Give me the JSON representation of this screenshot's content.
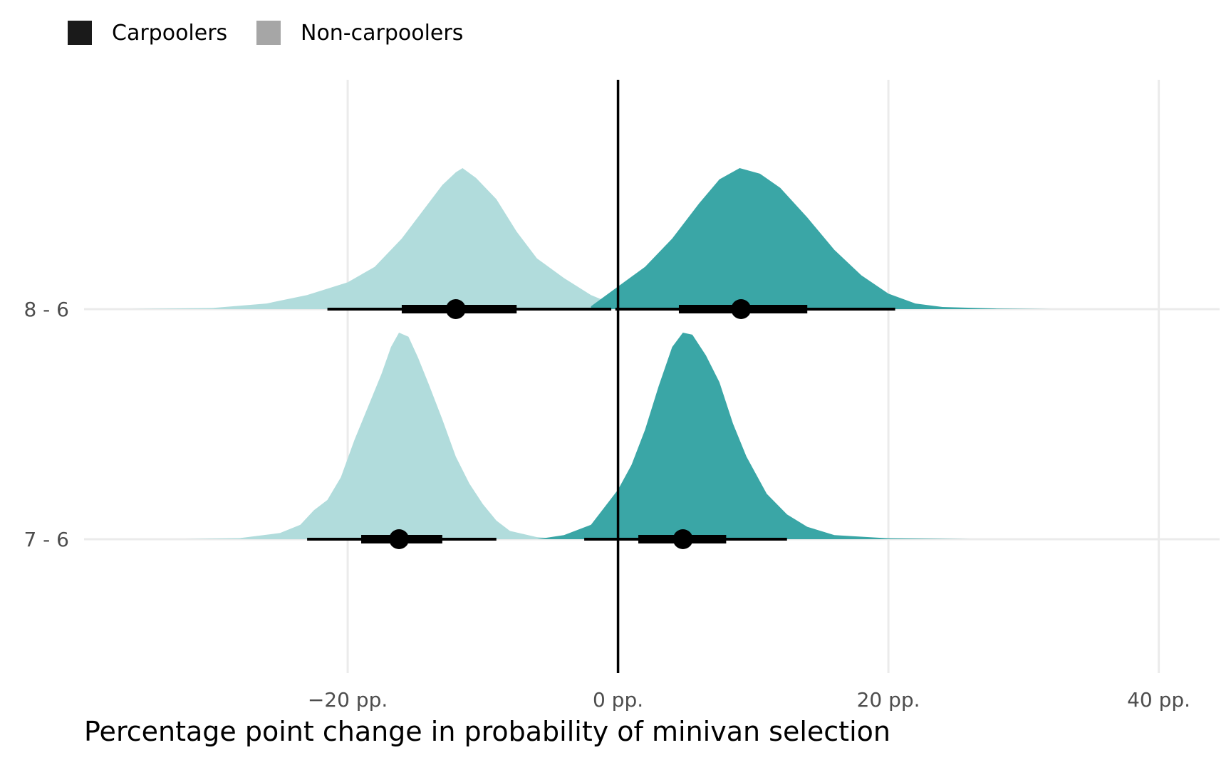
{
  "chart_data": {
    "type": "area",
    "title": "",
    "xlabel": "Percentage point change in probability of minivan selection",
    "ylabel": "",
    "xlim": [
      -39.5,
      44.5
    ],
    "x_ticks": [
      {
        "value": -20,
        "label": "−20 pp."
      },
      {
        "value": 0,
        "label": "0 pp."
      },
      {
        "value": 20,
        "label": "20 pp."
      },
      {
        "value": 40,
        "label": "40 pp."
      }
    ],
    "categories": [
      "8 - 6",
      "7 - 6"
    ],
    "reference_line_x": 0,
    "grid": true,
    "legend": {
      "position": "top-left",
      "entries": [
        {
          "name": "Carpoolers",
          "key_color": "#1a1a1a"
        },
        {
          "name": "Non-carpoolers",
          "key_color": "#a6a6a6"
        }
      ]
    },
    "colors": {
      "Carpoolers": "#3aa6a6",
      "Non-carpoolers": "#b1dcdc",
      "interval": "#000000"
    },
    "series": [
      {
        "name": "Carpoolers",
        "category": "8 - 6",
        "point": 9.1,
        "interval_66": [
          4.5,
          14.0
        ],
        "interval_95": [
          -0.2,
          20.5
        ],
        "density": [
          [
            -2,
            0.02
          ],
          [
            0,
            0.16
          ],
          [
            2,
            0.3
          ],
          [
            4,
            0.5
          ],
          [
            6,
            0.75
          ],
          [
            7.5,
            0.92
          ],
          [
            9,
            1.0
          ],
          [
            10.5,
            0.96
          ],
          [
            12,
            0.86
          ],
          [
            14,
            0.65
          ],
          [
            16,
            0.42
          ],
          [
            18,
            0.24
          ],
          [
            20,
            0.11
          ],
          [
            22,
            0.04
          ],
          [
            24,
            0.015
          ],
          [
            28,
            0.004
          ],
          [
            32,
            0.0
          ]
        ]
      },
      {
        "name": "Non-carpoolers",
        "category": "8 - 6",
        "point": -12.0,
        "interval_66": [
          -16.0,
          -7.5
        ],
        "interval_95": [
          -21.5,
          -0.5
        ],
        "density": [
          [
            -36,
            0.0
          ],
          [
            -30,
            0.008
          ],
          [
            -26,
            0.04
          ],
          [
            -23,
            0.1
          ],
          [
            -20,
            0.19
          ],
          [
            -18,
            0.3
          ],
          [
            -16,
            0.5
          ],
          [
            -14.5,
            0.69
          ],
          [
            -13,
            0.88
          ],
          [
            -12,
            0.97
          ],
          [
            -11.5,
            1.0
          ],
          [
            -10.5,
            0.93
          ],
          [
            -9,
            0.78
          ],
          [
            -7.5,
            0.55
          ],
          [
            -6,
            0.36
          ],
          [
            -4,
            0.22
          ],
          [
            -2,
            0.1
          ],
          [
            -1,
            0.06
          ],
          [
            0,
            0.0
          ]
        ]
      },
      {
        "name": "Carpoolers",
        "category": "7 - 6",
        "point": 4.8,
        "interval_66": [
          1.5,
          8.0
        ],
        "interval_95": [
          -2.5,
          12.5
        ],
        "density": [
          [
            -6,
            0.0
          ],
          [
            -4,
            0.02
          ],
          [
            -2,
            0.07
          ],
          [
            0,
            0.24
          ],
          [
            1,
            0.36
          ],
          [
            2,
            0.53
          ],
          [
            3,
            0.74
          ],
          [
            4,
            0.93
          ],
          [
            4.8,
            1.0
          ],
          [
            5.5,
            0.99
          ],
          [
            6.5,
            0.89
          ],
          [
            7.5,
            0.76
          ],
          [
            8.5,
            0.56
          ],
          [
            9.5,
            0.4
          ],
          [
            11,
            0.22
          ],
          [
            12.5,
            0.12
          ],
          [
            14,
            0.06
          ],
          [
            16,
            0.02
          ],
          [
            20,
            0.004
          ],
          [
            26,
            0.0
          ]
        ]
      },
      {
        "name": "Non-carpoolers",
        "category": "7 - 6",
        "point": -16.2,
        "interval_66": [
          -19.0,
          -13.0
        ],
        "interval_95": [
          -23.0,
          -9.0
        ],
        "density": [
          [
            -32,
            0.0
          ],
          [
            -28,
            0.005
          ],
          [
            -25,
            0.03
          ],
          [
            -23.5,
            0.07
          ],
          [
            -22.5,
            0.14
          ],
          [
            -21.5,
            0.19
          ],
          [
            -20.5,
            0.3
          ],
          [
            -19.5,
            0.48
          ],
          [
            -18.5,
            0.64
          ],
          [
            -17.5,
            0.8
          ],
          [
            -16.8,
            0.93
          ],
          [
            -16.2,
            1.0
          ],
          [
            -15.5,
            0.98
          ],
          [
            -14.8,
            0.88
          ],
          [
            -14,
            0.75
          ],
          [
            -13,
            0.58
          ],
          [
            -12,
            0.4
          ],
          [
            -11,
            0.27
          ],
          [
            -10,
            0.17
          ],
          [
            -9,
            0.09
          ],
          [
            -8,
            0.04
          ],
          [
            -6,
            0.01
          ],
          [
            -4,
            0.0
          ]
        ]
      }
    ]
  }
}
